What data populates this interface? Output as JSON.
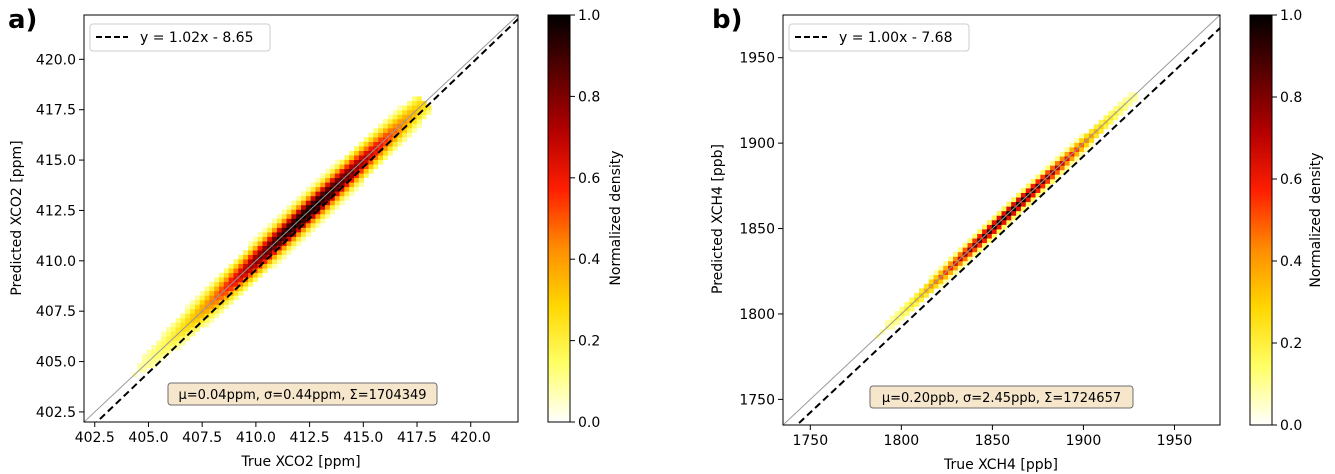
{
  "colors": {
    "cmap": [
      "#ffffff",
      "#ffff66",
      "#ffd700",
      "#ff8c00",
      "#ff1e00",
      "#b40000",
      "#5a0000",
      "#000000"
    ],
    "fit_line": "#000000",
    "identity_line": "#999999",
    "stats_box_fill": "#f5e6cc",
    "stats_box_stroke": "#6e6e6e"
  },
  "chart_data": [
    {
      "type": "heatmap",
      "panel_label": "a)",
      "xlabel": "True XCO2 [ppm]",
      "ylabel": "Predicted XCO2 [ppm]",
      "xlim": [
        402.0,
        422.2
      ],
      "ylim": [
        402.0,
        422.2
      ],
      "xticks": [
        402.5,
        405.0,
        407.5,
        410.0,
        412.5,
        415.0,
        417.5,
        420.0
      ],
      "yticks": [
        402.5,
        405.0,
        407.5,
        410.0,
        412.5,
        415.0,
        417.5,
        420.0
      ],
      "tick_format": "{:.1f}",
      "fit": {
        "slope": 1.02,
        "intercept": -8.65,
        "label": "y = 1.02x - 8.65"
      },
      "density_model": {
        "center": 412.3,
        "sigma_along": 3.0,
        "sigma_perp": 0.44,
        "range": [
          404.2,
          417.9
        ]
      },
      "stats_label": "μ=0.04ppm, σ=0.44ppm, Σ=1704349",
      "colorbar": {
        "label": "Normalized density",
        "ticks": [
          0.0,
          0.2,
          0.4,
          0.6,
          0.8,
          1.0
        ],
        "range": [
          0,
          1
        ]
      }
    },
    {
      "type": "heatmap",
      "panel_label": "b)",
      "xlabel": "True XCH4 [ppb]",
      "ylabel": "Predicted XCH4 [ppb]",
      "xlim": [
        1735,
        1975
      ],
      "ylim": [
        1735,
        1975
      ],
      "xticks": [
        1750,
        1800,
        1850,
        1900,
        1950
      ],
      "yticks": [
        1750,
        1800,
        1850,
        1900,
        1950
      ],
      "tick_format": "{:.0f}",
      "fit": {
        "slope": 1.0,
        "intercept": -7.68,
        "label": "y = 1.00x - 7.68"
      },
      "density_model": {
        "center": 1860,
        "sigma_along": 28.0,
        "sigma_perp": 2.45,
        "range": [
          1778,
          1930
        ]
      },
      "stats_label": "μ=0.20ppb, σ=2.45ppb, Σ=1724657",
      "colorbar": {
        "label": "Normalized density",
        "ticks": [
          0.0,
          0.2,
          0.4,
          0.6,
          0.8,
          1.0
        ],
        "range": [
          0,
          1
        ]
      }
    }
  ]
}
